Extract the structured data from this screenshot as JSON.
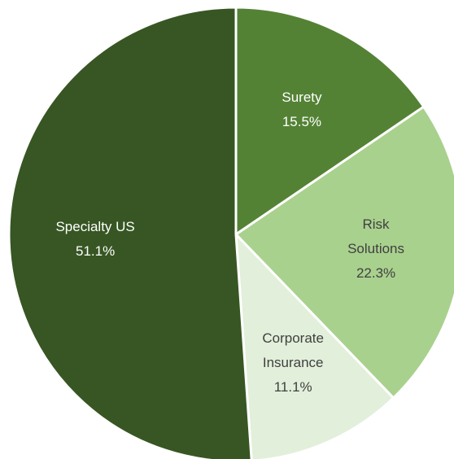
{
  "chart_data": {
    "type": "pie",
    "categories": [
      "Surety",
      "Risk Solutions",
      "Corporate Insurance",
      "Specialty US"
    ],
    "values": [
      15.5,
      22.3,
      11.1,
      51.1
    ],
    "value_labels": [
      "15.5%",
      "22.3%",
      "11.1%",
      "51.1%"
    ],
    "colors": [
      "#548235",
      "#a9d18e",
      "#e2efda",
      "#375623"
    ]
  }
}
